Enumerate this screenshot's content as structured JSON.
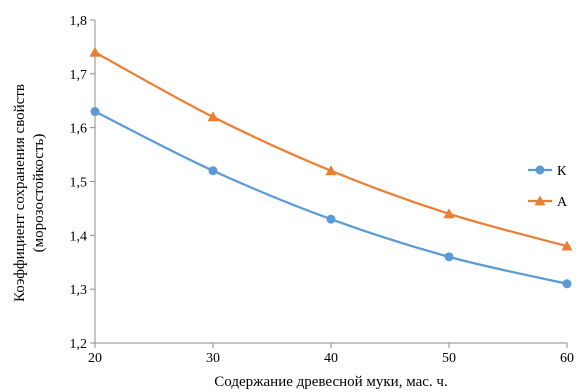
{
  "chart_data": {
    "type": "line",
    "title": "",
    "xlabel": "Содержание древесной муки, мас. ч.",
    "ylabel_line1": "Коэффициент сохранения свойств",
    "ylabel_line2": "(морозостойкость)",
    "x": [
      20,
      30,
      40,
      50,
      60
    ],
    "xlim": [
      20,
      60
    ],
    "ylim": [
      1.2,
      1.8
    ],
    "xticks": [
      "20",
      "30",
      "40",
      "50",
      "60"
    ],
    "yticks": [
      "1,2",
      "1,3",
      "1,4",
      "1,5",
      "1,6",
      "1,7",
      "1,8"
    ],
    "grid": false,
    "legend_position": "right",
    "series": [
      {
        "name": "К",
        "marker": "circle",
        "color": "#5B9BD5",
        "values": [
          1.63,
          1.52,
          1.43,
          1.36,
          1.31
        ]
      },
      {
        "name": "А",
        "marker": "triangle",
        "color": "#ED7D31",
        "values": [
          1.74,
          1.62,
          1.52,
          1.44,
          1.38
        ]
      }
    ]
  }
}
